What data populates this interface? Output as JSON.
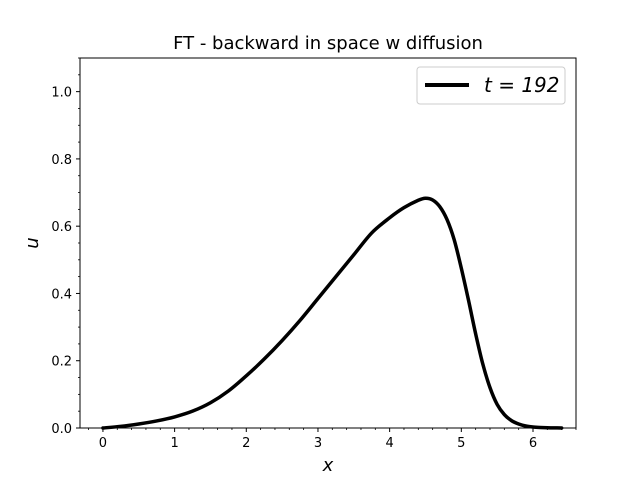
{
  "chart_data": {
    "type": "line",
    "title": "FT - backward in space w diffusion",
    "xlabel": "x",
    "ylabel": "u",
    "xlim": [
      -0.32,
      6.6
    ],
    "ylim": [
      0.0,
      1.1
    ],
    "xticks": [
      "0",
      "1",
      "2",
      "3",
      "4",
      "5",
      "6"
    ],
    "yticks": [
      "0.0",
      "0.2",
      "0.4",
      "0.6",
      "0.8",
      "1.0"
    ],
    "grid": false,
    "legend_position": "top-right",
    "series": [
      {
        "name": "t = 192",
        "color": "#000000",
        "x": [
          0.0,
          0.25,
          0.5,
          0.75,
          1.0,
          1.25,
          1.5,
          1.75,
          2.0,
          2.25,
          2.5,
          2.75,
          3.0,
          3.25,
          3.5,
          3.75,
          4.0,
          4.2,
          4.4,
          4.5,
          4.6,
          4.7,
          4.8,
          4.9,
          5.0,
          5.1,
          5.2,
          5.3,
          5.4,
          5.5,
          5.6,
          5.7,
          5.8,
          5.9,
          6.0,
          6.1,
          6.2,
          6.3,
          6.4
        ],
        "y": [
          0.0,
          0.005,
          0.012,
          0.021,
          0.033,
          0.05,
          0.075,
          0.11,
          0.155,
          0.205,
          0.26,
          0.32,
          0.385,
          0.45,
          0.515,
          0.58,
          0.625,
          0.655,
          0.677,
          0.683,
          0.678,
          0.658,
          0.62,
          0.56,
          0.475,
          0.38,
          0.28,
          0.19,
          0.12,
          0.07,
          0.04,
          0.022,
          0.012,
          0.006,
          0.003,
          0.0015,
          0.0007,
          0.0003,
          0.0001
        ]
      }
    ]
  }
}
